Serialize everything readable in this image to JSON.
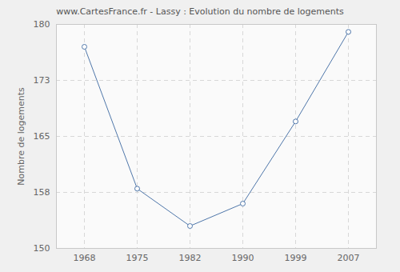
{
  "chart_data": {
    "type": "line",
    "title": "www.CartesFrance.fr - Lassy : Evolution du nombre de logements",
    "ylabel": "Nombre de logements",
    "categories": [
      "1968",
      "1975",
      "1982",
      "1990",
      "1999",
      "2007"
    ],
    "values": [
      177,
      158,
      153,
      156,
      167,
      179
    ],
    "color": "#4f77aa",
    "ylim": [
      150,
      180
    ],
    "yticks": [
      150,
      {
        "value": 157.5,
        "label": "158"
      },
      165,
      {
        "value": 172.5,
        "label": "173"
      },
      180
    ],
    "grid": true,
    "marker": "circle",
    "line_style": "solid"
  }
}
